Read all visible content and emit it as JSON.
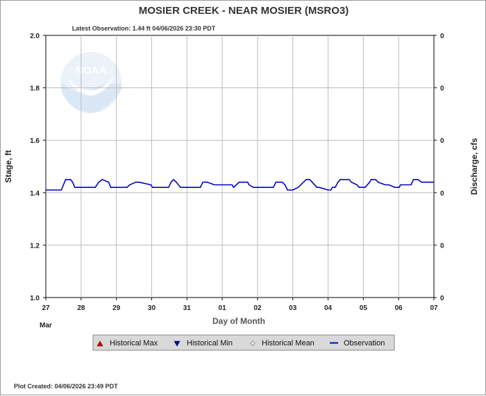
{
  "chart_data": {
    "type": "line",
    "title": "MOSIER CREEK - NEAR MOSIER  (MSRO3)",
    "subtitle": "Latest Observation: 1.44 ft 04/06/2026 23:30 PDT",
    "xlabel": "Day of Month",
    "ylabel": "Stage, ft",
    "y2label": "Discharge, cfs",
    "ylim": [
      1.0,
      2.0
    ],
    "yticks": [
      "2.0",
      "1.8",
      "1.6",
      "1.4",
      "1.2",
      "1.0"
    ],
    "y2ticks": [
      "0",
      "0",
      "0",
      "0",
      "0",
      "0"
    ],
    "xticks": [
      "27",
      "28",
      "29",
      "30",
      "31",
      "01",
      "02",
      "03",
      "04",
      "05",
      "06",
      "07"
    ],
    "month_label": "Mar",
    "grid": true,
    "legend_position": "bottom",
    "legend": [
      {
        "label": "Historical Max",
        "marker": "triangle-up",
        "color": "#cc0000"
      },
      {
        "label": "Historical Min",
        "marker": "triangle-down",
        "color": "#0000aa"
      },
      {
        "label": "Historical Mean",
        "marker": "diamond",
        "color": "#999999"
      },
      {
        "label": "Observation",
        "marker": "line",
        "color": "#0000cc"
      }
    ],
    "series": [
      {
        "name": "Observation",
        "color": "#0000cc",
        "x": [
          0,
          0.44,
          0.5,
          0.56,
          0.7,
          0.76,
          0.82,
          1.4,
          1.5,
          1.6,
          1.78,
          1.84,
          2.05,
          2.3,
          2.38,
          2.55,
          2.64,
          2.98,
          3.02,
          3.48,
          3.55,
          3.62,
          3.7,
          3.82,
          3.9,
          4.38,
          4.45,
          4.58,
          4.78,
          4.82,
          5.28,
          5.32,
          5.4,
          5.48,
          5.72,
          5.76,
          5.88,
          6.45,
          6.52,
          6.7,
          6.78,
          6.85,
          7.0,
          7.15,
          7.38,
          7.48,
          7.55,
          7.68,
          7.75,
          8.0,
          8.08,
          8.12,
          8.2,
          8.28,
          8.35,
          8.6,
          8.66,
          8.82,
          8.88,
          9.0,
          9.05,
          9.18,
          9.22,
          9.35,
          9.42,
          9.62,
          9.72,
          9.9,
          10.02,
          10.05,
          10.35,
          10.42,
          10.55,
          10.65,
          10.75,
          10.8,
          10.95,
          11.0
        ],
        "y": [
          1.41,
          1.41,
          1.43,
          1.45,
          1.45,
          1.44,
          1.42,
          1.42,
          1.44,
          1.45,
          1.44,
          1.42,
          1.42,
          1.42,
          1.43,
          1.44,
          1.44,
          1.43,
          1.42,
          1.42,
          1.44,
          1.45,
          1.44,
          1.42,
          1.42,
          1.42,
          1.44,
          1.44,
          1.43,
          1.43,
          1.43,
          1.42,
          1.43,
          1.44,
          1.44,
          1.43,
          1.42,
          1.42,
          1.44,
          1.44,
          1.43,
          1.41,
          1.41,
          1.42,
          1.45,
          1.45,
          1.44,
          1.42,
          1.42,
          1.41,
          1.41,
          1.42,
          1.42,
          1.44,
          1.45,
          1.45,
          1.44,
          1.43,
          1.42,
          1.42,
          1.42,
          1.44,
          1.45,
          1.45,
          1.44,
          1.43,
          1.43,
          1.42,
          1.42,
          1.43,
          1.43,
          1.45,
          1.45,
          1.44,
          1.44,
          1.44,
          1.44,
          1.44
        ]
      }
    ]
  },
  "footer": {
    "plot_created": "Plot Created: 04/06/2026 23:49 PDT"
  },
  "logo": {
    "text": "NOAA"
  }
}
